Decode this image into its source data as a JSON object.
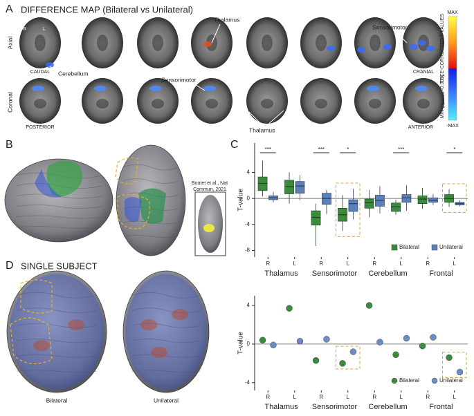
{
  "panel_a": {
    "letter": "A",
    "title": "DIFFERENCE MAP (Bilateral vs Unilateral)",
    "rows": [
      "Axial",
      "Coronal"
    ],
    "labels": {
      "right": "R",
      "left": "L",
      "caudal": "CAUDAL",
      "cranial": "CRANIAL",
      "posterior": "POSTERIOR",
      "anterior": "ANTERIOR"
    },
    "annotations": {
      "cerebellum": "Cerebellum",
      "thalamus_axial": "Thalamus",
      "sensorimotor_axial": "Sensorimotor",
      "sensorimotor_coronal": "Sensorimotor",
      "thalamus_coronal": "Thalamus"
    },
    "colorbar": {
      "max": "MAX",
      "min": "-MAX",
      "title": "TFCE-CORRECTED T-VALUES",
      "threshold": {
        "prefix": "MIN (",
        "p": "p",
        "subscript": "permute",
        "suffix": "<0.001)"
      }
    }
  },
  "panel_b": {
    "letter": "B",
    "citation": [
      "Boutet et al., Nat",
      "Commun, 2021"
    ]
  },
  "panel_c": {
    "letter": "C"
  },
  "panel_d": {
    "letter": "D",
    "title": "SINGLE SUBJECT",
    "brains": [
      "Bilateral",
      "Unilateral"
    ]
  },
  "chart_data": [
    {
      "type": "box",
      "categories": [
        "R",
        "L",
        "R",
        "L",
        "R",
        "L",
        "R",
        "L"
      ],
      "groups": [
        "Thalamus",
        "Sensorimotor",
        "Cerebellum",
        "Frontal"
      ],
      "ylabel": "T-value",
      "ylim": [
        -9,
        8.5
      ],
      "yticks": [
        -8,
        -4,
        0,
        4
      ],
      "legend": "lower right",
      "significance": [
        "***",
        null,
        "***",
        "*",
        null,
        "***",
        null,
        "*"
      ],
      "highlight": [
        false,
        false,
        false,
        true,
        false,
        false,
        false,
        true
      ],
      "series": [
        {
          "name": "Bilateral",
          "color": "#3c8a3d",
          "values": [
            {
              "low": 0.3,
              "q1": 1.2,
              "median": 2.3,
              "q3": 3.3,
              "high": 5.8
            },
            {
              "low": -0.8,
              "q1": 0.7,
              "median": 1.8,
              "q3": 2.8,
              "high": 4
            },
            {
              "low": -7.3,
              "q1": -4.1,
              "median": -2.9,
              "q3": -1.9,
              "high": -0.8
            },
            {
              "low": -5,
              "q1": -3.5,
              "median": -2.5,
              "q3": -1.5,
              "high": 0.5
            },
            {
              "low": -2.9,
              "q1": -1.5,
              "median": -0.6,
              "q3": -0.1,
              "high": 1.3
            },
            {
              "low": -2.5,
              "q1": -2,
              "median": -1.3,
              "q3": -0.7,
              "high": -0.2
            },
            {
              "low": -1.6,
              "q1": -0.8,
              "median": -0.1,
              "q3": 0.4,
              "high": 1.6
            },
            {
              "low": -1.3,
              "q1": -0.6,
              "median": 0,
              "q3": 0.6,
              "high": 1.4
            }
          ]
        },
        {
          "name": "Unilateral",
          "color": "#5b80b8",
          "values": [
            {
              "low": -0.6,
              "q1": -0.2,
              "median": 0.1,
              "q3": 0.4,
              "high": 1
            },
            {
              "low": -0.3,
              "q1": 0.8,
              "median": 1.9,
              "q3": 2.6,
              "high": 3.6
            },
            {
              "low": -2.4,
              "q1": -0.9,
              "median": 0,
              "q3": 0.8,
              "high": 1.3
            },
            {
              "low": -3.2,
              "q1": -2,
              "median": -0.8,
              "q3": -0.2,
              "high": 1.5
            },
            {
              "low": -2.3,
              "q1": -1.2,
              "median": -0.3,
              "q3": 0.5,
              "high": 1.9
            },
            {
              "low": -1.9,
              "q1": -0.6,
              "median": 0.1,
              "q3": 0.6,
              "high": 2
            },
            {
              "low": -1,
              "q1": -0.6,
              "median": -0.3,
              "q3": 0.1,
              "high": 0.7
            },
            {
              "low": -1.2,
              "q1": -1,
              "median": -0.8,
              "q3": -0.6,
              "high": -0.3
            }
          ]
        }
      ]
    },
    {
      "type": "dot",
      "categories": [
        "R",
        "L",
        "R",
        "L",
        "R",
        "L",
        "R",
        "L"
      ],
      "groups": [
        "Thalamus",
        "Sensorimotor",
        "Cerebellum",
        "Frontal"
      ],
      "ylabel": "T-value",
      "ylim": [
        -4.8,
        5
      ],
      "yticks": [
        -4,
        0,
        4
      ],
      "legend": "lower right",
      "highlight": [
        false,
        false,
        false,
        true,
        false,
        false,
        false,
        true
      ],
      "series": [
        {
          "name": "Bilateral",
          "color": "#3c8a3d",
          "values": [
            0.4,
            3.7,
            -1.7,
            -2,
            4,
            -1.1,
            -0.2,
            -1.4
          ]
        },
        {
          "name": "Unilateral",
          "color": "#6b8cc0",
          "values": [
            -0.1,
            0.3,
            0.5,
            -0.8,
            0.2,
            0.6,
            0.7,
            -2.9
          ]
        }
      ]
    }
  ]
}
